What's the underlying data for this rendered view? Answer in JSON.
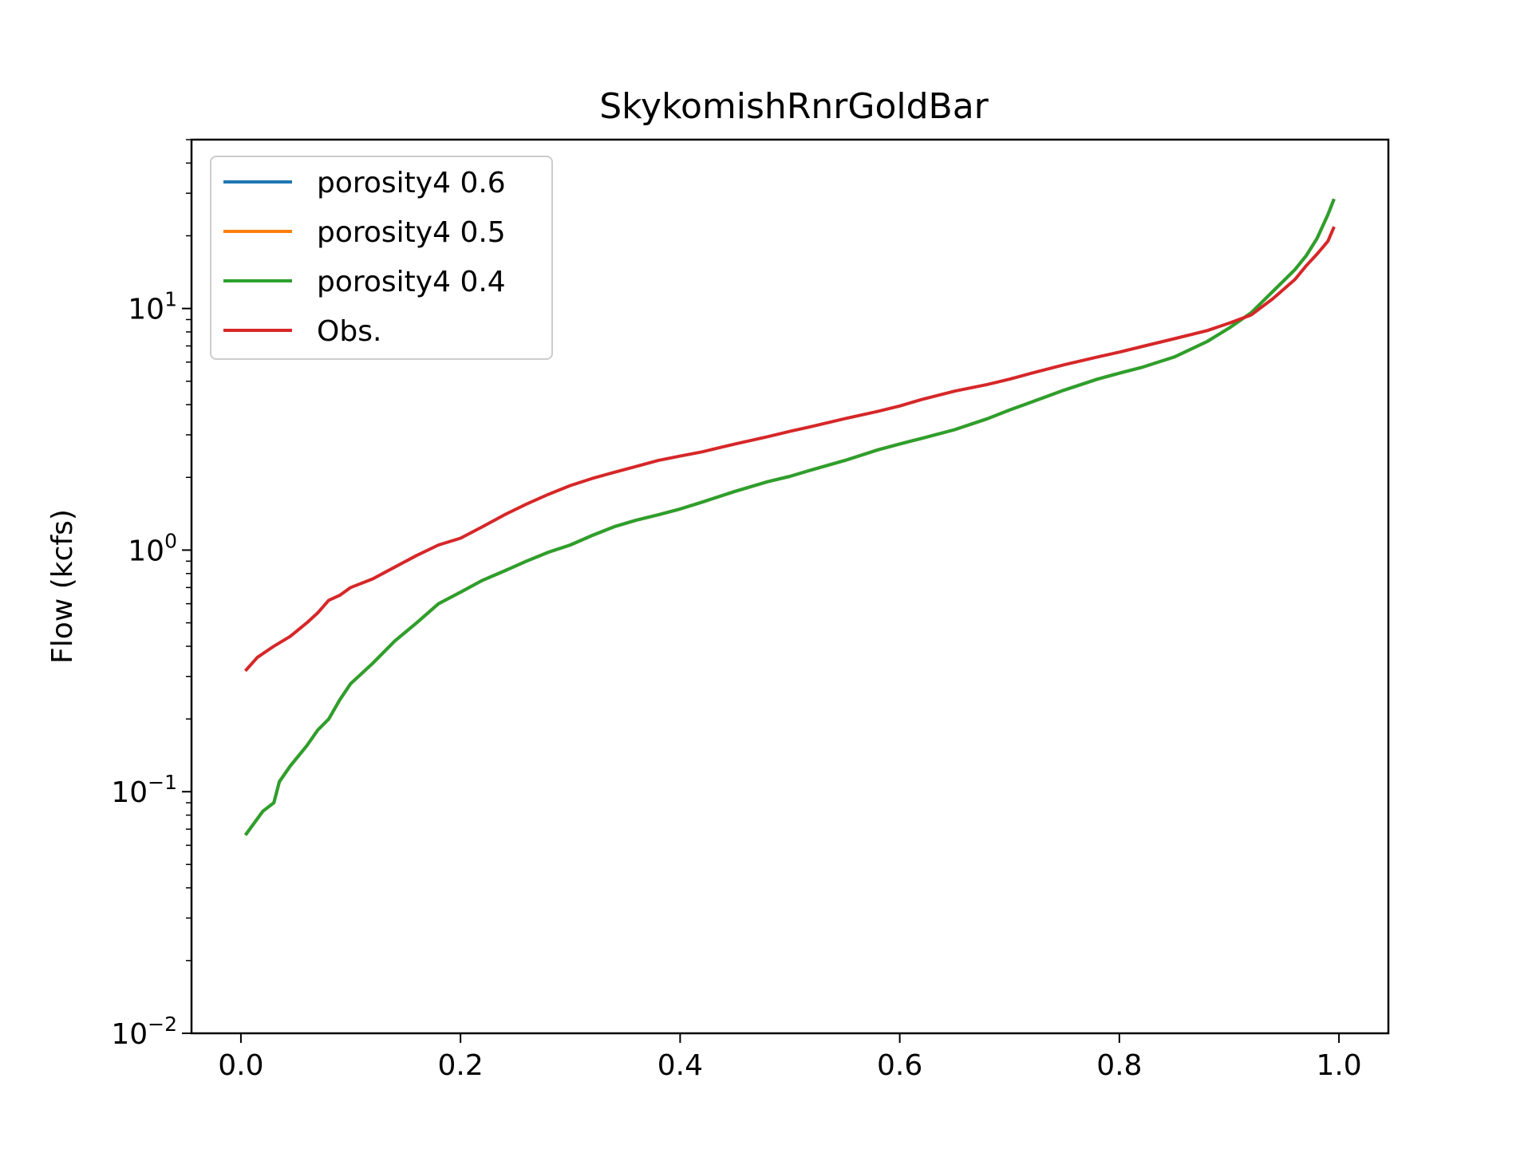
{
  "chart_data": {
    "type": "line",
    "title": "SkykomishRnrGoldBar",
    "xlabel": "",
    "ylabel": "Flow (kcfs)",
    "yscale": "log",
    "xlim": [
      -0.045,
      1.045
    ],
    "ylim": [
      0.01,
      50
    ],
    "x_ticks": [
      {
        "value": 0.0,
        "label": "0.0"
      },
      {
        "value": 0.2,
        "label": "0.2"
      },
      {
        "value": 0.4,
        "label": "0.4"
      },
      {
        "value": 0.6,
        "label": "0.6"
      },
      {
        "value": 0.8,
        "label": "0.8"
      },
      {
        "value": 1.0,
        "label": "1.0"
      }
    ],
    "y_ticks": [
      {
        "value": 0.01,
        "base": "10",
        "exp": "−2"
      },
      {
        "value": 0.1,
        "base": "10",
        "exp": "−1"
      },
      {
        "value": 1,
        "base": "10",
        "exp": "0"
      },
      {
        "value": 10,
        "base": "10",
        "exp": "1"
      }
    ],
    "grid": false,
    "legend_position": "upper-left",
    "colors": {
      "porosity4_0.6": "#1f77b4",
      "porosity4_0.5": "#ff7f0e",
      "porosity4_0.4": "#2ca02c",
      "obs": "#d62728",
      "axes": "#000000"
    },
    "series": [
      {
        "name": "porosity4 0.6",
        "color": "#1f77b4",
        "x": [
          0.005,
          0.02,
          0.03,
          0.035,
          0.045,
          0.06,
          0.07,
          0.08,
          0.09,
          0.1,
          0.12,
          0.14,
          0.16,
          0.18,
          0.2,
          0.22,
          0.24,
          0.26,
          0.28,
          0.3,
          0.32,
          0.34,
          0.36,
          0.38,
          0.4,
          0.42,
          0.45,
          0.48,
          0.5,
          0.52,
          0.55,
          0.58,
          0.6,
          0.62,
          0.65,
          0.68,
          0.7,
          0.72,
          0.75,
          0.78,
          0.8,
          0.82,
          0.85,
          0.88,
          0.9,
          0.92,
          0.94,
          0.96,
          0.97,
          0.98,
          0.99,
          0.995
        ],
        "values": [
          0.067,
          0.083,
          0.09,
          0.11,
          0.128,
          0.155,
          0.18,
          0.2,
          0.24,
          0.28,
          0.34,
          0.42,
          0.5,
          0.6,
          0.67,
          0.75,
          0.82,
          0.9,
          0.98,
          1.05,
          1.15,
          1.25,
          1.33,
          1.4,
          1.48,
          1.58,
          1.75,
          1.92,
          2.02,
          2.15,
          2.35,
          2.6,
          2.75,
          2.9,
          3.15,
          3.5,
          3.8,
          4.1,
          4.6,
          5.1,
          5.4,
          5.7,
          6.3,
          7.3,
          8.3,
          9.6,
          11.8,
          14.5,
          16.5,
          19.5,
          24.5,
          28.0
        ]
      },
      {
        "name": "porosity4 0.5",
        "color": "#ff7f0e",
        "x": [
          0.005,
          0.02,
          0.03,
          0.035,
          0.045,
          0.06,
          0.07,
          0.08,
          0.09,
          0.1,
          0.12,
          0.14,
          0.16,
          0.18,
          0.2,
          0.22,
          0.24,
          0.26,
          0.28,
          0.3,
          0.32,
          0.34,
          0.36,
          0.38,
          0.4,
          0.42,
          0.45,
          0.48,
          0.5,
          0.52,
          0.55,
          0.58,
          0.6,
          0.62,
          0.65,
          0.68,
          0.7,
          0.72,
          0.75,
          0.78,
          0.8,
          0.82,
          0.85,
          0.88,
          0.9,
          0.92,
          0.94,
          0.96,
          0.97,
          0.98,
          0.99,
          0.995
        ],
        "values": [
          0.067,
          0.083,
          0.09,
          0.11,
          0.128,
          0.155,
          0.18,
          0.2,
          0.24,
          0.28,
          0.34,
          0.42,
          0.5,
          0.6,
          0.67,
          0.75,
          0.82,
          0.9,
          0.98,
          1.05,
          1.15,
          1.25,
          1.33,
          1.4,
          1.48,
          1.58,
          1.75,
          1.92,
          2.02,
          2.15,
          2.35,
          2.6,
          2.75,
          2.9,
          3.15,
          3.5,
          3.8,
          4.1,
          4.6,
          5.1,
          5.4,
          5.7,
          6.3,
          7.3,
          8.3,
          9.6,
          11.8,
          14.5,
          16.5,
          19.5,
          24.5,
          28.0
        ]
      },
      {
        "name": "porosity4 0.4",
        "color": "#2ca02c",
        "x": [
          0.005,
          0.02,
          0.03,
          0.035,
          0.045,
          0.06,
          0.07,
          0.08,
          0.09,
          0.1,
          0.12,
          0.14,
          0.16,
          0.18,
          0.2,
          0.22,
          0.24,
          0.26,
          0.28,
          0.3,
          0.32,
          0.34,
          0.36,
          0.38,
          0.4,
          0.42,
          0.45,
          0.48,
          0.5,
          0.52,
          0.55,
          0.58,
          0.6,
          0.62,
          0.65,
          0.68,
          0.7,
          0.72,
          0.75,
          0.78,
          0.8,
          0.82,
          0.85,
          0.88,
          0.9,
          0.92,
          0.94,
          0.96,
          0.97,
          0.98,
          0.99,
          0.995
        ],
        "values": [
          0.067,
          0.083,
          0.09,
          0.11,
          0.128,
          0.155,
          0.18,
          0.2,
          0.24,
          0.28,
          0.34,
          0.42,
          0.5,
          0.6,
          0.67,
          0.75,
          0.82,
          0.9,
          0.98,
          1.05,
          1.15,
          1.25,
          1.33,
          1.4,
          1.48,
          1.58,
          1.75,
          1.92,
          2.02,
          2.15,
          2.35,
          2.6,
          2.75,
          2.9,
          3.15,
          3.5,
          3.8,
          4.1,
          4.6,
          5.1,
          5.4,
          5.7,
          6.3,
          7.3,
          8.3,
          9.6,
          11.8,
          14.5,
          16.5,
          19.5,
          24.5,
          28.0
        ]
      },
      {
        "name": "Obs.",
        "color": "#d62728",
        "x": [
          0.005,
          0.015,
          0.03,
          0.045,
          0.06,
          0.07,
          0.08,
          0.09,
          0.1,
          0.12,
          0.14,
          0.16,
          0.18,
          0.2,
          0.22,
          0.24,
          0.26,
          0.28,
          0.3,
          0.32,
          0.34,
          0.36,
          0.38,
          0.4,
          0.42,
          0.45,
          0.48,
          0.5,
          0.52,
          0.55,
          0.58,
          0.6,
          0.62,
          0.65,
          0.68,
          0.7,
          0.72,
          0.75,
          0.78,
          0.8,
          0.82,
          0.85,
          0.88,
          0.9,
          0.92,
          0.94,
          0.96,
          0.97,
          0.98,
          0.99,
          0.995
        ],
        "values": [
          0.32,
          0.36,
          0.4,
          0.44,
          0.5,
          0.55,
          0.62,
          0.65,
          0.7,
          0.76,
          0.85,
          0.95,
          1.05,
          1.12,
          1.25,
          1.4,
          1.55,
          1.7,
          1.85,
          1.98,
          2.1,
          2.22,
          2.35,
          2.45,
          2.55,
          2.75,
          2.95,
          3.1,
          3.25,
          3.5,
          3.75,
          3.95,
          4.2,
          4.55,
          4.85,
          5.1,
          5.4,
          5.85,
          6.3,
          6.6,
          6.95,
          7.5,
          8.1,
          8.7,
          9.4,
          11.0,
          13.2,
          15.0,
          16.8,
          19.0,
          21.5
        ]
      }
    ]
  }
}
